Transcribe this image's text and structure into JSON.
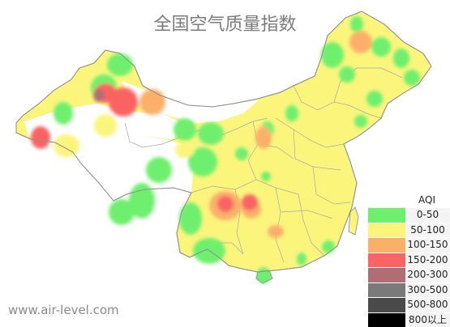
{
  "map": {
    "title": "全国空气质量指数",
    "watermark": "www.air-level.com"
  },
  "legend": {
    "title": "AQI",
    "items": [
      {
        "label": "0-50",
        "color": "#6ef06e"
      },
      {
        "label": "50-100",
        "color": "#fbf57c"
      },
      {
        "label": "100-150",
        "color": "#fbb06a"
      },
      {
        "label": "150-200",
        "color": "#fb6464"
      },
      {
        "label": "200-300",
        "color": "#b06e74"
      },
      {
        "label": "300-500",
        "color": "#7a7a7a"
      },
      {
        "label": "500-800",
        "color": "#4a4a4a"
      },
      {
        "label": "800以上",
        "color": "#000000"
      }
    ]
  },
  "colors": {
    "base": "#fbf57c",
    "background": "#ffffff",
    "border": "#9a9a9a"
  }
}
